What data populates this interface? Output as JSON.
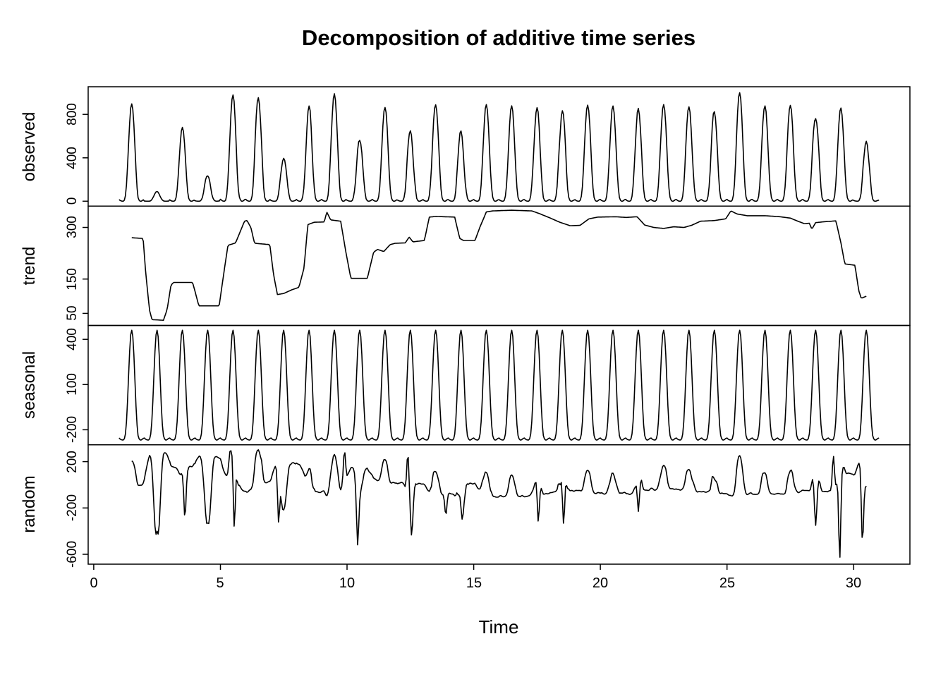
{
  "chart_data": {
    "type": "line",
    "title": "Decomposition of additive time series",
    "xlabel": "Time",
    "background": "#ffffff",
    "line_color": "#000000",
    "grid": false,
    "legend": "none",
    "x_start": 1,
    "x_end": 31,
    "frequency": 24,
    "xlim": [
      -0.22,
      32.22
    ],
    "x_ticks": [
      0,
      5,
      10,
      15,
      20,
      25,
      30
    ],
    "trend_random_x_range": [
      1.5,
      30.5
    ],
    "panels": [
      {
        "label": "observed",
        "ticks": [
          0,
          400,
          800
        ],
        "ylim": [
          -45,
          1055
        ]
      },
      {
        "label": "trend",
        "ticks": [
          50,
          150,
          300
        ],
        "ylim": [
          15,
          362
        ]
      },
      {
        "label": "seasonal",
        "ticks": [
          -200,
          100,
          400
        ],
        "ylim": [
          -300,
          492
        ]
      },
      {
        "label": "random",
        "ticks": [
          -600,
          -200,
          200
        ],
        "ylim": [
          -685,
          345
        ]
      }
    ],
    "seasonal_pattern": [
      -255,
      -262,
      -266,
      -268,
      -268,
      -260,
      -228,
      -148,
      -10,
      160,
      320,
      430,
      460,
      418,
      298,
      128,
      -42,
      -168,
      -238,
      -260,
      -268,
      -268,
      -263,
      -257
    ],
    "trend_points": [
      [
        1.5,
        270
      ],
      [
        1.95,
        268
      ],
      [
        2.05,
        170
      ],
      [
        2.2,
        60
      ],
      [
        2.3,
        32
      ],
      [
        2.75,
        30
      ],
      [
        2.9,
        62
      ],
      [
        3.05,
        132
      ],
      [
        3.15,
        140
      ],
      [
        3.9,
        140
      ],
      [
        4.05,
        100
      ],
      [
        4.15,
        72
      ],
      [
        4.95,
        72
      ],
      [
        5.1,
        150
      ],
      [
        5.3,
        248
      ],
      [
        5.6,
        255
      ],
      [
        5.95,
        318
      ],
      [
        6.05,
        320
      ],
      [
        6.2,
        300
      ],
      [
        6.35,
        254
      ],
      [
        6.95,
        250
      ],
      [
        7.1,
        162
      ],
      [
        7.25,
        105
      ],
      [
        7.5,
        108
      ],
      [
        7.8,
        118
      ],
      [
        8.1,
        126
      ],
      [
        8.3,
        182
      ],
      [
        8.45,
        308
      ],
      [
        8.7,
        315
      ],
      [
        9.1,
        316
      ],
      [
        9.2,
        345
      ],
      [
        9.35,
        322
      ],
      [
        9.75,
        318
      ],
      [
        9.95,
        230
      ],
      [
        10.15,
        152
      ],
      [
        10.8,
        152
      ],
      [
        11.05,
        228
      ],
      [
        11.2,
        236
      ],
      [
        11.45,
        230
      ],
      [
        11.7,
        250
      ],
      [
        11.9,
        254
      ],
      [
        12.3,
        255
      ],
      [
        12.45,
        272
      ],
      [
        12.6,
        258
      ],
      [
        13.05,
        262
      ],
      [
        13.25,
        330
      ],
      [
        13.5,
        332
      ],
      [
        14.25,
        330
      ],
      [
        14.45,
        268
      ],
      [
        14.6,
        262
      ],
      [
        15.05,
        262
      ],
      [
        15.25,
        302
      ],
      [
        15.5,
        345
      ],
      [
        15.75,
        348
      ],
      [
        16.5,
        350
      ],
      [
        17.3,
        348
      ],
      [
        17.6,
        340
      ],
      [
        18.0,
        328
      ],
      [
        18.4,
        315
      ],
      [
        18.8,
        305
      ],
      [
        19.2,
        306
      ],
      [
        19.55,
        325
      ],
      [
        19.9,
        330
      ],
      [
        20.6,
        331
      ],
      [
        21.0,
        329
      ],
      [
        21.45,
        331
      ],
      [
        21.75,
        307
      ],
      [
        22.1,
        300
      ],
      [
        22.5,
        297
      ],
      [
        22.9,
        302
      ],
      [
        23.3,
        300
      ],
      [
        23.6,
        306
      ],
      [
        23.95,
        318
      ],
      [
        24.5,
        320
      ],
      [
        24.95,
        325
      ],
      [
        25.15,
        348
      ],
      [
        25.4,
        339
      ],
      [
        25.8,
        334
      ],
      [
        26.5,
        334
      ],
      [
        27.1,
        331
      ],
      [
        27.5,
        327
      ],
      [
        27.8,
        318
      ],
      [
        28.05,
        311
      ],
      [
        28.25,
        312
      ],
      [
        28.35,
        295
      ],
      [
        28.5,
        314
      ],
      [
        28.9,
        317
      ],
      [
        29.3,
        319
      ],
      [
        29.5,
        254
      ],
      [
        29.65,
        194
      ],
      [
        30.05,
        190
      ],
      [
        30.2,
        116
      ],
      [
        30.3,
        94
      ],
      [
        30.5,
        100
      ]
    ],
    "observed_peak_heights": [
      900,
      90,
      680,
      230,
      980,
      950,
      400,
      870,
      990,
      560,
      860,
      640,
      900,
      650,
      890,
      880,
      860,
      820,
      890,
      880,
      850,
      890,
      870,
      830,
      1000,
      880,
      890,
      760,
      860,
      550
    ],
    "observed_jaggedness": [
      0.3,
      0.8,
      0.35,
      0.9,
      0.85,
      0.5,
      0.9,
      0.8,
      0.3,
      0.9,
      0.4,
      0.9,
      0.5,
      0.9,
      0.3,
      0.3,
      0.4,
      0.7,
      0.3,
      0.3,
      0.5,
      0.3,
      0.4,
      0.5,
      0.3,
      0.3,
      0.35,
      0.8,
      0.6,
      1.0
    ],
    "random_extremes": [
      [
        2.5,
        -400
      ],
      [
        3.6,
        -290
      ],
      [
        4.5,
        -330
      ],
      [
        5.4,
        300
      ],
      [
        5.55,
        -370
      ],
      [
        7.3,
        -330
      ],
      [
        9.9,
        295
      ],
      [
        10.42,
        -520
      ],
      [
        12.4,
        265
      ],
      [
        12.55,
        -440
      ],
      [
        13.9,
        -260
      ],
      [
        14.55,
        -300
      ],
      [
        17.55,
        -320
      ],
      [
        18.55,
        -340
      ],
      [
        21.5,
        -230
      ],
      [
        28.5,
        -350
      ],
      [
        29.2,
        250
      ],
      [
        29.45,
        -640
      ],
      [
        30.35,
        -500
      ]
    ],
    "noise": {
      "seed": 1337,
      "base": 12,
      "random_gain": 1.25
    }
  }
}
